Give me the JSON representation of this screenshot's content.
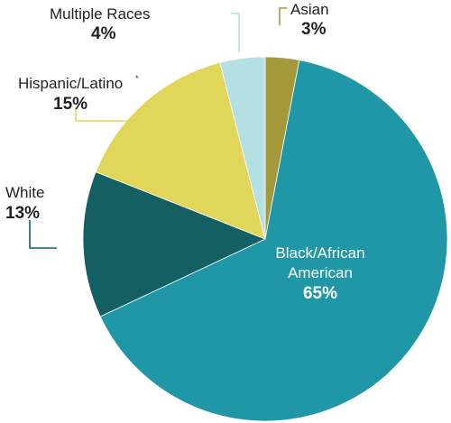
{
  "chart_data": {
    "type": "pie",
    "start_angle_deg": 0,
    "direction": "clockwise",
    "slices": [
      {
        "label": "Asian",
        "value": 3,
        "display": "3%",
        "color": "#a3993b"
      },
      {
        "label": "Black/African American",
        "label_lines": [
          "Black/African",
          "American"
        ],
        "value": 65,
        "display": "65%",
        "color": "#1f97a6"
      },
      {
        "label": "White",
        "value": 13,
        "display": "13%",
        "color": "#145f64"
      },
      {
        "label": "Hispanic/Latino",
        "footnote_mark": "*",
        "value": 15,
        "display": "15%",
        "color": "#e0d75a"
      },
      {
        "label": "Multiple Races",
        "value": 4,
        "display": "4%",
        "color": "#b4e0e4"
      }
    ]
  }
}
